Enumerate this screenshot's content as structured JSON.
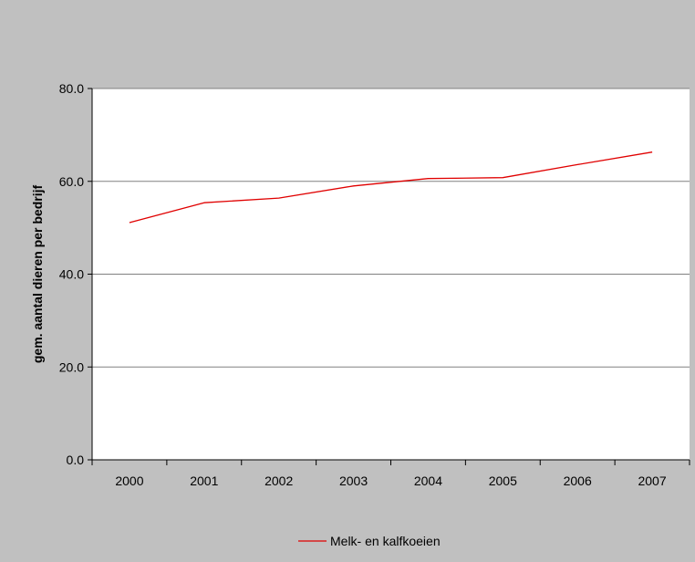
{
  "chart_data": {
    "type": "line",
    "x": [
      "2000",
      "2001",
      "2002",
      "2003",
      "2004",
      "2005",
      "2006",
      "2007"
    ],
    "series": [
      {
        "name": "Melk- en kalfkoeien",
        "values": [
          51.1,
          55.4,
          56.4,
          59.0,
          60.6,
          60.8,
          63.6,
          66.3
        ],
        "color": "#e00000"
      }
    ],
    "ylabel": "gem. aantal dieren per bedrijf",
    "xlabel": "",
    "ylim": [
      0,
      80
    ],
    "yticks": [
      0,
      20,
      40,
      60,
      80
    ],
    "ytick_labels": [
      "0.0",
      "20.0",
      "40.0",
      "60.0",
      "80.0"
    ],
    "grid": "horizontal",
    "legend_position": "bottom",
    "background": "#c0c0c0",
    "plot_background": "#ffffff"
  }
}
